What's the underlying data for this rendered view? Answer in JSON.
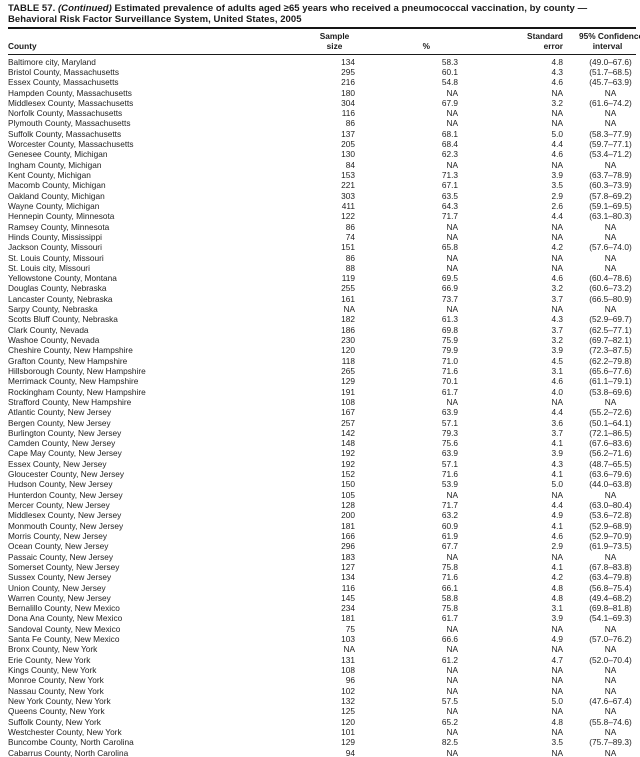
{
  "title": {
    "prefix": "TABLE 57.",
    "continued": "(Continued)",
    "rest": "Estimated prevalence of adults aged ≥65 years who received a pneumococcal vaccination, by county —",
    "line2": "Behavioral Risk Factor Surveillance System, United States, 2005"
  },
  "columns": {
    "county": "County",
    "sample1": "Sample",
    "sample2": "size",
    "pct": "%",
    "se1": "Standard",
    "se2": "error",
    "ci1": "95% Confidence",
    "ci2": "interval"
  },
  "rows": [
    [
      "Baltimore city, Maryland",
      "134",
      "58.3",
      "4.8",
      "(49.0–67.6)"
    ],
    [
      "Bristol County, Massachusetts",
      "295",
      "60.1",
      "4.3",
      "(51.7–68.5)"
    ],
    [
      "Essex County, Massachusetts",
      "216",
      "54.8",
      "4.6",
      "(45.7–63.9)"
    ],
    [
      "Hampden County, Massachusetts",
      "180",
      "NA",
      "NA",
      "NA"
    ],
    [
      "Middlesex County, Massachusetts",
      "304",
      "67.9",
      "3.2",
      "(61.6–74.2)"
    ],
    [
      "Norfolk County, Massachusetts",
      "116",
      "NA",
      "NA",
      "NA"
    ],
    [
      "Plymouth County, Massachusetts",
      "86",
      "NA",
      "NA",
      "NA"
    ],
    [
      "Suffolk County, Massachusetts",
      "137",
      "68.1",
      "5.0",
      "(58.3–77.9)"
    ],
    [
      "Worcester County, Massachusetts",
      "205",
      "68.4",
      "4.4",
      "(59.7–77.1)"
    ],
    [
      "Genesee County, Michigan",
      "130",
      "62.3",
      "4.6",
      "(53.4–71.2)"
    ],
    [
      "Ingham County, Michigan",
      "84",
      "NA",
      "NA",
      "NA"
    ],
    [
      "Kent County, Michigan",
      "153",
      "71.3",
      "3.9",
      "(63.7–78.9)"
    ],
    [
      "Macomb County, Michigan",
      "221",
      "67.1",
      "3.5",
      "(60.3–73.9)"
    ],
    [
      "Oakland County, Michigan",
      "303",
      "63.5",
      "2.9",
      "(57.8–69.2)"
    ],
    [
      "Wayne County, Michigan",
      "411",
      "64.3",
      "2.6",
      "(59.1–69.5)"
    ],
    [
      "Hennepin County, Minnesota",
      "122",
      "71.7",
      "4.4",
      "(63.1–80.3)"
    ],
    [
      "Ramsey County, Minnesota",
      "86",
      "NA",
      "NA",
      "NA"
    ],
    [
      "Hinds County, Mississippi",
      "74",
      "NA",
      "NA",
      "NA"
    ],
    [
      "Jackson County, Missouri",
      "151",
      "65.8",
      "4.2",
      "(57.6–74.0)"
    ],
    [
      "St. Louis County, Missouri",
      "86",
      "NA",
      "NA",
      "NA"
    ],
    [
      "St. Louis city, Missouri",
      "88",
      "NA",
      "NA",
      "NA"
    ],
    [
      "Yellowstone County, Montana",
      "119",
      "69.5",
      "4.6",
      "(60.4–78.6)"
    ],
    [
      "Douglas County, Nebraska",
      "255",
      "66.9",
      "3.2",
      "(60.6–73.2)"
    ],
    [
      "Lancaster County, Nebraska",
      "161",
      "73.7",
      "3.7",
      "(66.5–80.9)"
    ],
    [
      "Sarpy County, Nebraska",
      "NA",
      "NA",
      "NA",
      "NA"
    ],
    [
      "Scotts Bluff County, Nebraska",
      "182",
      "61.3",
      "4.3",
      "(52.9–69.7)"
    ],
    [
      "Clark County, Nevada",
      "186",
      "69.8",
      "3.7",
      "(62.5–77.1)"
    ],
    [
      "Washoe County, Nevada",
      "230",
      "75.9",
      "3.2",
      "(69.7–82.1)"
    ],
    [
      "Cheshire County, New Hampshire",
      "120",
      "79.9",
      "3.9",
      "(72.3–87.5)"
    ],
    [
      "Grafton County, New Hampshire",
      "118",
      "71.0",
      "4.5",
      "(62.2–79.8)"
    ],
    [
      "Hillsborough County, New Hampshire",
      "265",
      "71.6",
      "3.1",
      "(65.6–77.6)"
    ],
    [
      "Merrimack County, New Hampshire",
      "129",
      "70.1",
      "4.6",
      "(61.1–79.1)"
    ],
    [
      "Rockingham County, New Hampshire",
      "191",
      "61.7",
      "4.0",
      "(53.8–69.6)"
    ],
    [
      "Strafford County, New Hampshire",
      "108",
      "NA",
      "NA",
      "NA"
    ],
    [
      "Atlantic County, New Jersey",
      "167",
      "63.9",
      "4.4",
      "(55.2–72.6)"
    ],
    [
      "Bergen County, New Jersey",
      "257",
      "57.1",
      "3.6",
      "(50.1–64.1)"
    ],
    [
      "Burlington County, New Jersey",
      "142",
      "79.3",
      "3.7",
      "(72.1–86.5)"
    ],
    [
      "Camden County, New Jersey",
      "148",
      "75.6",
      "4.1",
      "(67.6–83.6)"
    ],
    [
      "Cape May County, New Jersey",
      "192",
      "63.9",
      "3.9",
      "(56.2–71.6)"
    ],
    [
      "Essex County, New Jersey",
      "192",
      "57.1",
      "4.3",
      "(48.7–65.5)"
    ],
    [
      "Gloucester County, New Jersey",
      "152",
      "71.6",
      "4.1",
      "(63.6–79.6)"
    ],
    [
      "Hudson County, New Jersey",
      "150",
      "53.9",
      "5.0",
      "(44.0–63.8)"
    ],
    [
      "Hunterdon County, New Jersey",
      "105",
      "NA",
      "NA",
      "NA"
    ],
    [
      "Mercer County, New Jersey",
      "128",
      "71.7",
      "4.4",
      "(63.0–80.4)"
    ],
    [
      "Middlesex County, New Jersey",
      "200",
      "63.2",
      "4.9",
      "(53.6–72.8)"
    ],
    [
      "Monmouth County, New Jersey",
      "181",
      "60.9",
      "4.1",
      "(52.9–68.9)"
    ],
    [
      "Morris County, New Jersey",
      "166",
      "61.9",
      "4.6",
      "(52.9–70.9)"
    ],
    [
      "Ocean County, New Jersey",
      "296",
      "67.7",
      "2.9",
      "(61.9–73.5)"
    ],
    [
      "Passaic County, New Jersey",
      "183",
      "NA",
      "NA",
      "NA"
    ],
    [
      "Somerset County, New Jersey",
      "127",
      "75.8",
      "4.1",
      "(67.8–83.8)"
    ],
    [
      "Sussex County, New Jersey",
      "134",
      "71.6",
      "4.2",
      "(63.4–79.8)"
    ],
    [
      "Union County, New Jersey",
      "116",
      "66.1",
      "4.8",
      "(56.8–75.4)"
    ],
    [
      "Warren County, New Jersey",
      "145",
      "58.8",
      "4.8",
      "(49.4–68.2)"
    ],
    [
      "Bernalillo County, New Mexico",
      "234",
      "75.8",
      "3.1",
      "(69.8–81.8)"
    ],
    [
      "Dona Ana County, New Mexico",
      "181",
      "61.7",
      "3.9",
      "(54.1–69.3)"
    ],
    [
      "Sandoval County, New Mexico",
      "75",
      "NA",
      "NA",
      "NA"
    ],
    [
      "Santa Fe County, New Mexico",
      "103",
      "66.6",
      "4.9",
      "(57.0–76.2)"
    ],
    [
      "Bronx County, New York",
      "NA",
      "NA",
      "NA",
      "NA"
    ],
    [
      "Erie County, New York",
      "131",
      "61.2",
      "4.7",
      "(52.0–70.4)"
    ],
    [
      "Kings County, New York",
      "108",
      "NA",
      "NA",
      "NA"
    ],
    [
      "Monroe County, New York",
      "96",
      "NA",
      "NA",
      "NA"
    ],
    [
      "Nassau County, New York",
      "102",
      "NA",
      "NA",
      "NA"
    ],
    [
      "New York County, New York",
      "132",
      "57.5",
      "5.0",
      "(47.6–67.4)"
    ],
    [
      "Queens County, New York",
      "125",
      "NA",
      "NA",
      "NA"
    ],
    [
      "Suffolk County, New York",
      "120",
      "65.2",
      "4.8",
      "(55.8–74.6)"
    ],
    [
      "Westchester County, New York",
      "101",
      "NA",
      "NA",
      "NA"
    ],
    [
      "Buncombe County, North Carolina",
      "129",
      "82.5",
      "3.5",
      "(75.7–89.3)"
    ],
    [
      "Cabarrus County, North Carolina",
      "94",
      "NA",
      "NA",
      "NA"
    ]
  ]
}
